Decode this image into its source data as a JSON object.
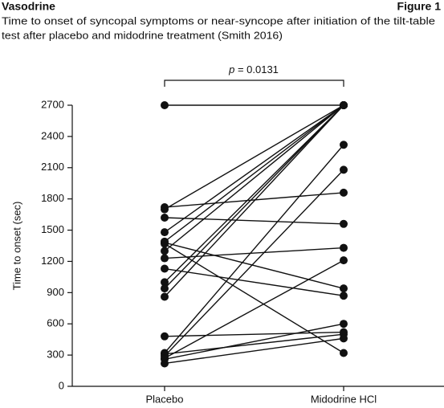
{
  "header": {
    "title": "Vasodrine",
    "figure": "Figure 1",
    "subtitle": [
      "Time to onset of syncopal symptoms or near-syncope after initiation of the tilt-table",
      "test after placebo and midodrine treatment (Smith 2016)"
    ]
  },
  "chart_data": {
    "type": "paired",
    "ylabel": "Time to onset (sec)",
    "ylim": [
      0,
      2700
    ],
    "yticks": [
      0,
      300,
      600,
      900,
      1200,
      1500,
      1800,
      2100,
      2400,
      2700
    ],
    "color": "#111111",
    "annotation": {
      "p": "p",
      "text": "= 0.0131"
    },
    "series": [
      {
        "name": "Placebo",
        "values": [
          2700,
          1720,
          1700,
          1620,
          1480,
          1390,
          1370,
          1300,
          1230,
          1130,
          1000,
          940,
          860,
          480,
          320,
          310,
          290,
          270,
          260,
          220,
          1380
        ]
      },
      {
        "name": "Midodrine HCl",
        "values": [
          2700,
          1860,
          2700,
          1560,
          2700,
          2700,
          320,
          2700,
          1330,
          870,
          2700,
          2700,
          2700,
          520,
          2320,
          500,
          2080,
          1210,
          600,
          460,
          940
        ]
      }
    ]
  }
}
